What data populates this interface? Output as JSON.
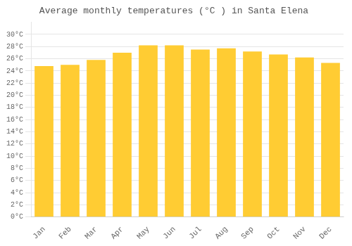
{
  "chart_data": {
    "type": "bar",
    "title": "Average monthly temperatures (°C ) in Santa Elena",
    "categories": [
      "Jan",
      "Feb",
      "Mar",
      "Apr",
      "May",
      "Jun",
      "Jul",
      "Aug",
      "Sep",
      "Oct",
      "Nov",
      "Dec"
    ],
    "values": [
      24.8,
      25.0,
      25.8,
      27.0,
      28.2,
      28.2,
      27.5,
      27.7,
      27.2,
      26.7,
      26.2,
      25.3
    ],
    "color": "#FFCC33",
    "ylim": [
      0,
      32
    ],
    "yticks": [
      {
        "value": 0,
        "label": "0°C"
      },
      {
        "value": 2,
        "label": "2°C"
      },
      {
        "value": 4,
        "label": "4°C"
      },
      {
        "value": 6,
        "label": "6°C"
      },
      {
        "value": 8,
        "label": "8°C"
      },
      {
        "value": 10,
        "label": "10°C"
      },
      {
        "value": 12,
        "label": "12°C"
      },
      {
        "value": 14,
        "label": "14°C"
      },
      {
        "value": 16,
        "label": "16°C"
      },
      {
        "value": 18,
        "label": "18°C"
      },
      {
        "value": 20,
        "label": "20°C"
      },
      {
        "value": 22,
        "label": "22°C"
      },
      {
        "value": 24,
        "label": "24°C"
      },
      {
        "value": 26,
        "label": "26°C"
      },
      {
        "value": 28,
        "label": "28°C"
      },
      {
        "value": 30,
        "label": "30°C"
      }
    ],
    "grid": "y"
  }
}
